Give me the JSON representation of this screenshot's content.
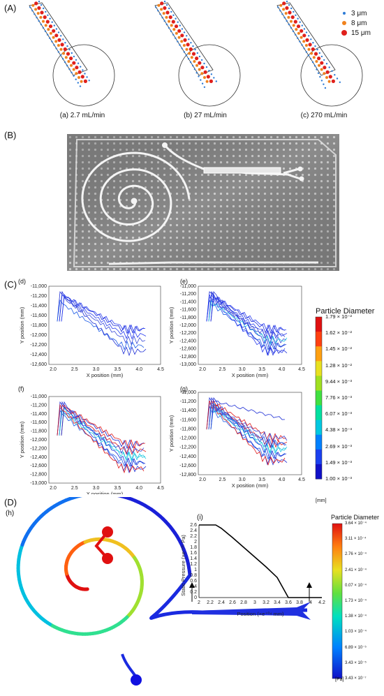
{
  "panels": {
    "A": "(A)",
    "B": "(B)",
    "C": "(C)",
    "D": "(D)"
  },
  "panelA": {
    "legend": [
      {
        "label": "3 μm",
        "color": "#2e7bd6"
      },
      {
        "label": "8 μm",
        "color": "#f0821e"
      },
      {
        "label": "15 μm",
        "color": "#e0201c"
      }
    ],
    "captions": [
      "(a) 2.7 mL/min",
      "(b) 27 mL/min",
      "(c) 270 mL/min"
    ]
  },
  "panelC": {
    "subplots": [
      "(d)",
      "(e)",
      "(f)",
      "(g)"
    ],
    "ylabel": "Y position (mm)",
    "xlabel": "X position (mm)",
    "legend_title": "Particle Diameter",
    "legend_ticks": [
      "1.79 × 10⁻²",
      "1.62 × 10⁻²",
      "1.45 × 10⁻²",
      "1.28 × 10⁻²",
      "9.44 × 10⁻³",
      "7.76 × 10⁻³",
      "6.07 × 10⁻³",
      "4.38 × 10⁻³",
      "2.69 × 10⁻³",
      "1.49 × 10⁻³",
      "1.00 × 10⁻³"
    ],
    "legend_unit": "[mm]"
  },
  "panelD": {
    "labels": [
      "(h)",
      "(i)"
    ],
    "legend_title": "Particle Diameter",
    "legend_ticks": [
      "3.64 × 10⁻⁴",
      "3.11 × 10⁻⁴",
      "2.76 × 10⁻⁴",
      "2.41 × 10⁻⁴",
      "0.07 × 10⁻⁴",
      "1.73 × 10⁻⁴",
      "1.38 × 10⁻⁴",
      "1.03 × 10⁻⁴",
      "6.89 × 10⁻⁵",
      "3.43 × 10⁻⁵",
      "3.43 × 10⁻⁷"
    ],
    "legend_unit": "[Pa]"
  },
  "chart_data": [
    {
      "type": "line",
      "id": "d",
      "x_ticks": [
        "2.0",
        "2.5",
        "3.0",
        "3.5",
        "4.0",
        "4.5"
      ],
      "y_ticks": [
        "-11,000",
        "-11,200",
        "-11,400",
        "-11,600",
        "-11,800",
        "-12,000",
        "-12,200",
        "-12,400",
        "-12,600"
      ],
      "xlim": [
        1.9,
        4.5
      ],
      "ylim": [
        -12800,
        -11000
      ],
      "xlabel": "X position (mm)",
      "ylabel": "Y position (mm)"
    },
    {
      "type": "line",
      "id": "e",
      "x_ticks": [
        "2.0",
        "2.5",
        "3.0",
        "3.5",
        "4.0",
        "4.5"
      ],
      "y_ticks": [
        "-11,000",
        "-11,200",
        "-11,400",
        "-11,600",
        "-11,800",
        "-12,000",
        "-12,200",
        "-12,400",
        "-12,600",
        "-12,800",
        "-13,000"
      ],
      "xlim": [
        1.9,
        4.5
      ],
      "ylim": [
        -13000,
        -11000
      ],
      "xlabel": "X position (mm)",
      "ylabel": "Y position (mm)"
    },
    {
      "type": "line",
      "id": "f",
      "x_ticks": [
        "2.0",
        "2.5",
        "3.0",
        "3.5",
        "4.0",
        "4.5"
      ],
      "y_ticks": [
        "-11,000",
        "-11,200",
        "-11,400",
        "-11,600",
        "-11,800",
        "-12,000",
        "-12,200",
        "-12,400",
        "-12,600",
        "-12,800",
        "-13,000"
      ],
      "xlim": [
        1.9,
        4.5
      ],
      "ylim": [
        -13000,
        -11000
      ],
      "xlabel": "X position (mm)",
      "ylabel": "Y position (mm)"
    },
    {
      "type": "line",
      "id": "g",
      "x_ticks": [
        "2.0",
        "2.5",
        "3.0",
        "3.5",
        "4.0",
        "4.5"
      ],
      "y_ticks": [
        "-11,000",
        "-11,200",
        "-11,400",
        "-11,600",
        "-11,800",
        "-12,000",
        "-12,200",
        "-12,400",
        "-12,600",
        "-12,800"
      ],
      "xlim": [
        1.9,
        4.5
      ],
      "ylim": [
        -12800,
        -11000
      ],
      "xlabel": "X position (mm)",
      "ylabel": "Y position (mm)"
    },
    {
      "type": "line",
      "id": "i",
      "x": [
        2.0,
        2.1,
        2.2,
        2.3,
        2.4,
        2.6,
        2.8,
        3.0,
        3.2,
        3.4,
        3.6,
        3.7,
        3.8,
        4.0,
        4.2
      ],
      "y": [
        2.6,
        2.6,
        2.6,
        2.6,
        2.48,
        2.15,
        1.8,
        1.45,
        1.1,
        0.72,
        0.0,
        0.0,
        0.0,
        0.0,
        0.0
      ],
      "x_ticks": [
        "2",
        "2.2",
        "2.4",
        "2.6",
        "2.8",
        "3",
        "3.2",
        "3.4",
        "3.6",
        "3.8",
        "4",
        "4.2"
      ],
      "y_ticks": [
        "0",
        "0.2",
        "0.4",
        "0.6",
        "0.8",
        "1",
        "1.2",
        "1.4",
        "1.6",
        "1.8",
        "2",
        "2.2",
        "2.4",
        "2.6"
      ],
      "xlim": [
        2,
        4.2
      ],
      "ylim": [
        0,
        2.6
      ],
      "xlabel": "Position (×e⁺⁰⁴ mm)",
      "ylabel": "Static Pressure (×e⁺⁰⁵ Pa)"
    }
  ]
}
